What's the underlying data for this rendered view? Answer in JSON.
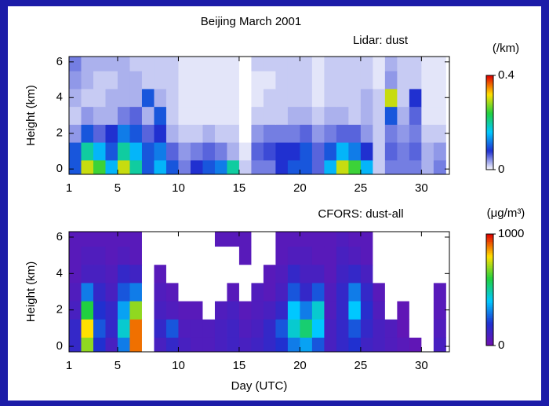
{
  "chart_data": [
    {
      "type": "heatmap",
      "title": "Beijing  March 2001",
      "subtitle": "Lidar: dust",
      "ylabel": "Height (km)",
      "colorbar_label": "(/km)",
      "x": [
        1,
        2,
        3,
        4,
        5,
        6,
        7,
        8,
        9,
        10,
        11,
        12,
        13,
        14,
        15,
        16,
        17,
        18,
        19,
        20,
        21,
        22,
        23,
        24,
        25,
        26,
        27,
        28,
        29,
        30,
        31
      ],
      "y": [
        0,
        1,
        2,
        3,
        4,
        5,
        6
      ],
      "values": [
        [
          0.1,
          0.3,
          0.25,
          0.15,
          0.3,
          0.2,
          0.1,
          0.15,
          0.1,
          0.05,
          0.08,
          0.1,
          0.12,
          0.2,
          0.02,
          0.05,
          0.05,
          0.08,
          0.1,
          0.1,
          0.06,
          0.15,
          0.3,
          0.25,
          0.15,
          0.02,
          0.05,
          0.05,
          0.05,
          0.03,
          0.05
        ],
        [
          0.1,
          0.2,
          0.15,
          0.1,
          0.2,
          0.15,
          0.1,
          0.12,
          0.06,
          0.04,
          0.05,
          0.06,
          0.05,
          0.03,
          0.01,
          0.06,
          0.07,
          0.08,
          0.08,
          0.1,
          0.06,
          0.1,
          0.15,
          0.12,
          0.08,
          0.02,
          0.06,
          0.05,
          0.06,
          0.03,
          0.04
        ],
        [
          0.04,
          0.1,
          0.06,
          0.08,
          0.12,
          0.1,
          0.06,
          0.08,
          0.03,
          0.02,
          0.02,
          0.03,
          0.02,
          0.02,
          0,
          0.04,
          0.05,
          0.05,
          0.05,
          0.06,
          0.04,
          0.05,
          0.06,
          0.06,
          0.04,
          0.02,
          0.05,
          0.04,
          0.05,
          0.02,
          0.02
        ],
        [
          0.02,
          0.04,
          0.03,
          0.03,
          0.05,
          0.06,
          0.03,
          0.1,
          0.02,
          0.01,
          0.01,
          0.01,
          0.01,
          0.01,
          0,
          0.02,
          0.02,
          0.02,
          0.03,
          0.03,
          0.02,
          0.03,
          0.03,
          0.02,
          0.03,
          0.02,
          0.1,
          0.03,
          0.06,
          0.01,
          0.01
        ],
        [
          0.03,
          0.02,
          0.02,
          0.03,
          0.03,
          0.03,
          0.1,
          0.03,
          0.02,
          0.01,
          0.01,
          0.01,
          0.01,
          0.01,
          0,
          0.01,
          0.02,
          0.02,
          0.02,
          0.02,
          0.01,
          0.02,
          0.02,
          0.02,
          0.03,
          0.02,
          0.3,
          0.02,
          0.08,
          0.01,
          0.01
        ],
        [
          0.04,
          0.03,
          0.02,
          0.02,
          0.03,
          0.03,
          0.02,
          0.02,
          0.02,
          0.01,
          0.01,
          0.01,
          0.01,
          0.01,
          0,
          0.01,
          0.01,
          0.02,
          0.02,
          0.02,
          0.01,
          0.02,
          0.02,
          0.02,
          0.02,
          0.01,
          0.04,
          0.02,
          0.02,
          0.01,
          0.01
        ],
        [
          0.05,
          0.03,
          0.03,
          0.03,
          0.03,
          0.02,
          0.02,
          0.02,
          0.02,
          0.01,
          0.01,
          0.01,
          0.01,
          0.01,
          0,
          0.02,
          0.02,
          0.02,
          0.02,
          0.02,
          0.01,
          0.02,
          0.02,
          0.02,
          0.02,
          0.01,
          0.03,
          0.02,
          0.02,
          0.01,
          0.01
        ]
      ],
      "colormap": [
        "#ffffff",
        "#2030d0",
        "#00c8ff",
        "#20d040",
        "#ffe000",
        "#e00000"
      ],
      "clim": [
        0,
        0.4
      ],
      "cticks": [
        0,
        0.4
      ],
      "xlim": [
        1,
        32.3
      ],
      "xticks": [
        1,
        5,
        10,
        15,
        20,
        25,
        30
      ],
      "ylim": [
        -0.3,
        6.3
      ],
      "yticks": [
        0,
        2,
        4,
        6
      ]
    },
    {
      "type": "heatmap",
      "subtitle": "CFORS: dust-all",
      "ylabel": "Height (km)",
      "xlabel": "Day (UTC)",
      "colorbar_label": "(μg/m³)",
      "x": [
        1,
        2,
        3,
        4,
        5,
        6,
        7,
        8,
        9,
        10,
        11,
        12,
        13,
        14,
        15,
        16,
        17,
        18,
        19,
        20,
        21,
        22,
        23,
        24,
        25,
        26,
        27,
        28,
        29,
        30,
        31
      ],
      "y": [
        0,
        1,
        2,
        3,
        4,
        5,
        6
      ],
      "values": [
        [
          150,
          700,
          200,
          100,
          300,
          900,
          0,
          100,
          150,
          100,
          80,
          80,
          100,
          120,
          100,
          120,
          150,
          200,
          300,
          350,
          250,
          100,
          150,
          200,
          120,
          100,
          80,
          60,
          40,
          0,
          100
        ],
        [
          150,
          800,
          250,
          150,
          450,
          900,
          0,
          150,
          250,
          80,
          80,
          80,
          100,
          120,
          80,
          100,
          150,
          250,
          450,
          550,
          400,
          100,
          150,
          250,
          150,
          100,
          80,
          40,
          0,
          0,
          80
        ],
        [
          100,
          600,
          200,
          150,
          350,
          700,
          0,
          100,
          80,
          60,
          60,
          0,
          80,
          100,
          60,
          80,
          100,
          150,
          400,
          300,
          450,
          80,
          150,
          400,
          180,
          80,
          0,
          40,
          0,
          0,
          60
        ],
        [
          80,
          300,
          150,
          100,
          250,
          300,
          0,
          80,
          60,
          0,
          0,
          0,
          0,
          60,
          0,
          80,
          60,
          100,
          250,
          150,
          250,
          80,
          150,
          300,
          150,
          60,
          0,
          0,
          0,
          0,
          60
        ],
        [
          60,
          100,
          100,
          80,
          150,
          120,
          0,
          60,
          0,
          0,
          0,
          0,
          0,
          0,
          0,
          0,
          60,
          80,
          150,
          100,
          100,
          60,
          120,
          150,
          100,
          0,
          0,
          0,
          0,
          0,
          0
        ],
        [
          60,
          80,
          80,
          60,
          80,
          60,
          0,
          0,
          0,
          0,
          0,
          0,
          0,
          0,
          60,
          0,
          0,
          60,
          80,
          80,
          60,
          60,
          100,
          80,
          60,
          0,
          0,
          0,
          0,
          0,
          0
        ],
        [
          60,
          60,
          60,
          60,
          60,
          60,
          0,
          0,
          0,
          0,
          0,
          0,
          60,
          60,
          60,
          0,
          0,
          60,
          60,
          60,
          60,
          60,
          80,
          60,
          60,
          0,
          0,
          0,
          0,
          0,
          0
        ]
      ],
      "colormap": [
        "#7010b0",
        "#2030d0",
        "#00c8ff",
        "#20d040",
        "#ffe000",
        "#e00000"
      ],
      "zero_color": "#ffffff",
      "clim": [
        0,
        1000
      ],
      "cticks": [
        0,
        1000
      ],
      "xlim": [
        1,
        32.3
      ],
      "xticks": [
        1,
        5,
        10,
        15,
        20,
        25,
        30
      ],
      "ylim": [
        -0.3,
        6.3
      ],
      "yticks": [
        0,
        2,
        4,
        6
      ]
    }
  ]
}
